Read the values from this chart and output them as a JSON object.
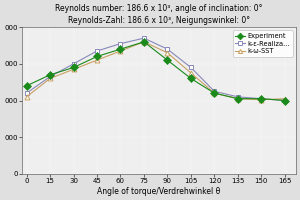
{
  "title_line1": "Reynolds number: 186.6 x 10³, angle of inclination: 0°",
  "title_line2": "Reynolds-Zahl: 186.6 x 10³, Neigungswinkel: 0°",
  "xlabel": "Angle of torque/Verdrehwinkel θ",
  "angles": [
    0,
    15,
    30,
    45,
    60,
    75,
    90,
    105,
    120,
    135,
    150,
    165
  ],
  "experiment": [
    2400,
    2700,
    2900,
    3200,
    3400,
    3600,
    3100,
    2600,
    2200,
    2050,
    2050,
    2000
  ],
  "k_eps": [
    2200,
    2650,
    3000,
    3350,
    3550,
    3700,
    3400,
    2900,
    2250,
    2100,
    2050,
    2000
  ],
  "k_omega": [
    2100,
    2600,
    2850,
    3100,
    3350,
    3600,
    3300,
    2750,
    2200,
    2050,
    2020,
    2050
  ],
  "ylim": [
    0,
    4000
  ],
  "xlim": [
    -3,
    172
  ],
  "bg_color": "#e0e0e0",
  "plot_bg": "#efefef",
  "exp_color": "#1a8a1a",
  "k_eps_color": "#8888bb",
  "k_omega_color": "#c8a060",
  "legend_labels": [
    "Experiment",
    "k-ε-Realiza...",
    "k-ω-SST"
  ],
  "title_fontsize": 5.5,
  "tick_fontsize": 5,
  "label_fontsize": 5.5,
  "legend_fontsize": 4.8
}
